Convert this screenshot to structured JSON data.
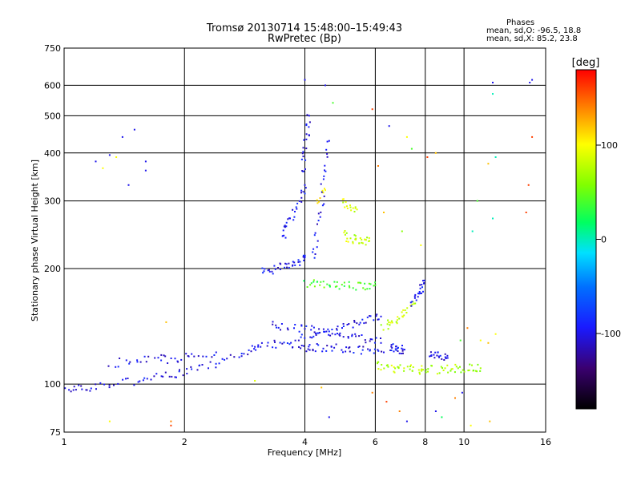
{
  "header": {
    "title_line1": "Tromsø 20130714 15:48:00–15:49:43",
    "title_line2": "RwPretec (Bp)"
  },
  "stats": {
    "heading": "Phases",
    "line_o": "mean, sd,O: -96.5, 18.8",
    "line_x": "mean, sd,X: 85.2, 23.8"
  },
  "colorbar": {
    "label": "[deg]",
    "min": -180,
    "max": 180,
    "ticks": [
      {
        "value": 100,
        "label": "100"
      },
      {
        "value": 0,
        "label": "0"
      },
      {
        "value": -100,
        "label": "-100"
      }
    ]
  },
  "chart_data": {
    "type": "scatter",
    "xlabel": "Frequency [MHz]",
    "ylabel": "Stationary phase Virtual Height [km]",
    "xscale": "log",
    "yscale": "log",
    "xlim": [
      1,
      16
    ],
    "ylim": [
      75,
      750
    ],
    "xticks": [
      1,
      2,
      4,
      6,
      8,
      10,
      16
    ],
    "yticks": [
      75,
      100,
      200,
      300,
      400,
      500,
      600,
      750
    ],
    "grid": true,
    "color_variable": "phase [deg]",
    "traces": [
      {
        "x": [
          1.0,
          1.1,
          1.2,
          1.4,
          1.6,
          1.8,
          2.0,
          2.2,
          2.5,
          2.8,
          3.0
        ],
        "y": [
          98,
          97,
          99,
          101,
          103,
          106,
          107,
          110,
          114,
          120,
          125
        ],
        "phase": -100
      },
      {
        "x": [
          1.3,
          1.5,
          1.7,
          1.9,
          2.1,
          2.4
        ],
        "y": [
          113,
          115,
          117,
          116,
          119,
          121
        ],
        "phase": -100
      },
      {
        "x": [
          3.0,
          3.3,
          3.6,
          3.9,
          4.2,
          4.5,
          4.9,
          5.3,
          5.8,
          6.3
        ],
        "y": [
          126,
          127,
          126,
          125,
          124,
          125,
          124,
          123,
          122,
          121
        ],
        "phase": -100
      },
      {
        "x": [
          3.3,
          3.6,
          4.0,
          4.4,
          4.8,
          5.2,
          5.7,
          6.2
        ],
        "y": [
          143,
          141,
          139,
          138,
          136,
          134,
          131,
          128
        ],
        "phase": -100
      },
      {
        "x": [
          3.8,
          4.2,
          4.6,
          5.0,
          5.4,
          5.8,
          6.2
        ],
        "y": [
          132,
          135,
          137,
          140,
          144,
          147,
          150
        ],
        "phase": -100
      },
      {
        "x": [
          3.1,
          3.3,
          3.5,
          3.7,
          3.9,
          4.0
        ],
        "y": [
          196,
          198,
          202,
          206,
          210,
          214
        ],
        "phase": -100
      },
      {
        "x": [
          3.5,
          3.6,
          3.75,
          3.9,
          4.0
        ],
        "y": [
          240,
          258,
          276,
          300,
          330
        ],
        "phase": -100
      },
      {
        "x": [
          3.95,
          4.0,
          4.05,
          4.1
        ],
        "y": [
          350,
          400,
          450,
          500
        ],
        "phase": -100
      },
      {
        "x": [
          4.2,
          4.3,
          4.4,
          4.5,
          4.6
        ],
        "y": [
          210,
          250,
          300,
          360,
          430
        ],
        "phase": -100
      },
      {
        "x": [
          4.0,
          4.3,
          4.6,
          4.9,
          5.3,
          5.7,
          6.0
        ],
        "y": [
          183,
          182,
          181,
          181,
          180,
          180,
          181
        ],
        "phase": 40
      },
      {
        "x": [
          5.0,
          5.2,
          5.4,
          5.6,
          5.8
        ],
        "y": [
          245,
          240,
          238,
          236,
          236
        ],
        "phase": 80
      },
      {
        "x": [
          5.0,
          5.2,
          5.4
        ],
        "y": [
          300,
          290,
          285
        ],
        "phase": 90
      },
      {
        "x": [
          6.0,
          6.4,
          6.8,
          7.2,
          7.6,
          7.9
        ],
        "y": [
          112,
          111,
          110,
          110,
          109,
          109
        ],
        "phase": 80
      },
      {
        "x": [
          8.0,
          8.6,
          9.2,
          9.8,
          10.4,
          11.0
        ],
        "y": [
          109,
          109,
          110,
          110,
          110,
          110
        ],
        "phase": 70
      },
      {
        "x": [
          6.3,
          6.6,
          6.9,
          7.2,
          7.5
        ],
        "y": [
          140,
          145,
          150,
          156,
          162
        ],
        "phase": 80
      },
      {
        "x": [
          7.4,
          7.6,
          7.8,
          7.9
        ],
        "y": [
          162,
          170,
          178,
          186
        ],
        "phase": -100
      },
      {
        "x": [
          6.5,
          6.7,
          6.9,
          7.1
        ],
        "y": [
          125,
          124,
          123,
          123
        ],
        "phase": -100
      },
      {
        "x": [
          8.2,
          8.5,
          8.8,
          9.1
        ],
        "y": [
          120,
          119,
          118,
          117
        ],
        "phase": -100
      },
      {
        "x": [
          4.3,
          4.5
        ],
        "y": [
          300,
          320
        ],
        "phase": 100
      }
    ],
    "isolated_points": [
      {
        "x": 1.2,
        "y": 380,
        "phase": -100
      },
      {
        "x": 1.3,
        "y": 395,
        "phase": -100
      },
      {
        "x": 1.4,
        "y": 440,
        "phase": -100
      },
      {
        "x": 1.5,
        "y": 460,
        "phase": -100
      },
      {
        "x": 1.6,
        "y": 380,
        "phase": -100
      },
      {
        "x": 1.6,
        "y": 360,
        "phase": -100
      },
      {
        "x": 1.45,
        "y": 330,
        "phase": -100
      },
      {
        "x": 1.25,
        "y": 365,
        "phase": 100
      },
      {
        "x": 1.35,
        "y": 390,
        "phase": 100
      },
      {
        "x": 1.8,
        "y": 145,
        "phase": 120
      },
      {
        "x": 1.85,
        "y": 80,
        "phase": 140
      },
      {
        "x": 1.85,
        "y": 78,
        "phase": 160
      },
      {
        "x": 1.3,
        "y": 80,
        "phase": 100
      },
      {
        "x": 3.0,
        "y": 102,
        "phase": 90
      },
      {
        "x": 4.0,
        "y": 620,
        "phase": -100
      },
      {
        "x": 4.5,
        "y": 600,
        "phase": -100
      },
      {
        "x": 4.7,
        "y": 540,
        "phase": 40
      },
      {
        "x": 5.9,
        "y": 520,
        "phase": 160
      },
      {
        "x": 6.1,
        "y": 370,
        "phase": 140
      },
      {
        "x": 6.3,
        "y": 280,
        "phase": 120
      },
      {
        "x": 6.5,
        "y": 470,
        "phase": -100
      },
      {
        "x": 7.2,
        "y": 440,
        "phase": 100
      },
      {
        "x": 7.4,
        "y": 410,
        "phase": 40
      },
      {
        "x": 8.1,
        "y": 390,
        "phase": 160
      },
      {
        "x": 8.5,
        "y": 400,
        "phase": 120
      },
      {
        "x": 7.0,
        "y": 250,
        "phase": 60
      },
      {
        "x": 7.8,
        "y": 230,
        "phase": 100
      },
      {
        "x": 11.8,
        "y": 610,
        "phase": -100
      },
      {
        "x": 11.8,
        "y": 570,
        "phase": 0
      },
      {
        "x": 12.0,
        "y": 390,
        "phase": 0
      },
      {
        "x": 11.5,
        "y": 375,
        "phase": 120
      },
      {
        "x": 11.8,
        "y": 270,
        "phase": 0
      },
      {
        "x": 14.6,
        "y": 610,
        "phase": -100
      },
      {
        "x": 14.8,
        "y": 620,
        "phase": -100
      },
      {
        "x": 14.8,
        "y": 440,
        "phase": 160
      },
      {
        "x": 14.5,
        "y": 330,
        "phase": 160
      },
      {
        "x": 14.3,
        "y": 280,
        "phase": 160
      },
      {
        "x": 10.8,
        "y": 300,
        "phase": 40
      },
      {
        "x": 10.5,
        "y": 250,
        "phase": 0
      },
      {
        "x": 11.0,
        "y": 130,
        "phase": 100
      },
      {
        "x": 11.5,
        "y": 128,
        "phase": 120
      },
      {
        "x": 12.0,
        "y": 135,
        "phase": 100
      },
      {
        "x": 10.2,
        "y": 140,
        "phase": 140
      },
      {
        "x": 9.8,
        "y": 130,
        "phase": 40
      },
      {
        "x": 8.5,
        "y": 85,
        "phase": -100
      },
      {
        "x": 8.8,
        "y": 82,
        "phase": 20
      },
      {
        "x": 9.5,
        "y": 92,
        "phase": 140
      },
      {
        "x": 9.9,
        "y": 95,
        "phase": -100
      },
      {
        "x": 10.4,
        "y": 78,
        "phase": 100
      },
      {
        "x": 11.6,
        "y": 80,
        "phase": 120
      },
      {
        "x": 6.4,
        "y": 90,
        "phase": 160
      },
      {
        "x": 6.9,
        "y": 85,
        "phase": 140
      },
      {
        "x": 7.2,
        "y": 80,
        "phase": -100
      },
      {
        "x": 5.9,
        "y": 95,
        "phase": 140
      },
      {
        "x": 4.6,
        "y": 82,
        "phase": -100
      },
      {
        "x": 4.4,
        "y": 98,
        "phase": 120
      }
    ]
  }
}
